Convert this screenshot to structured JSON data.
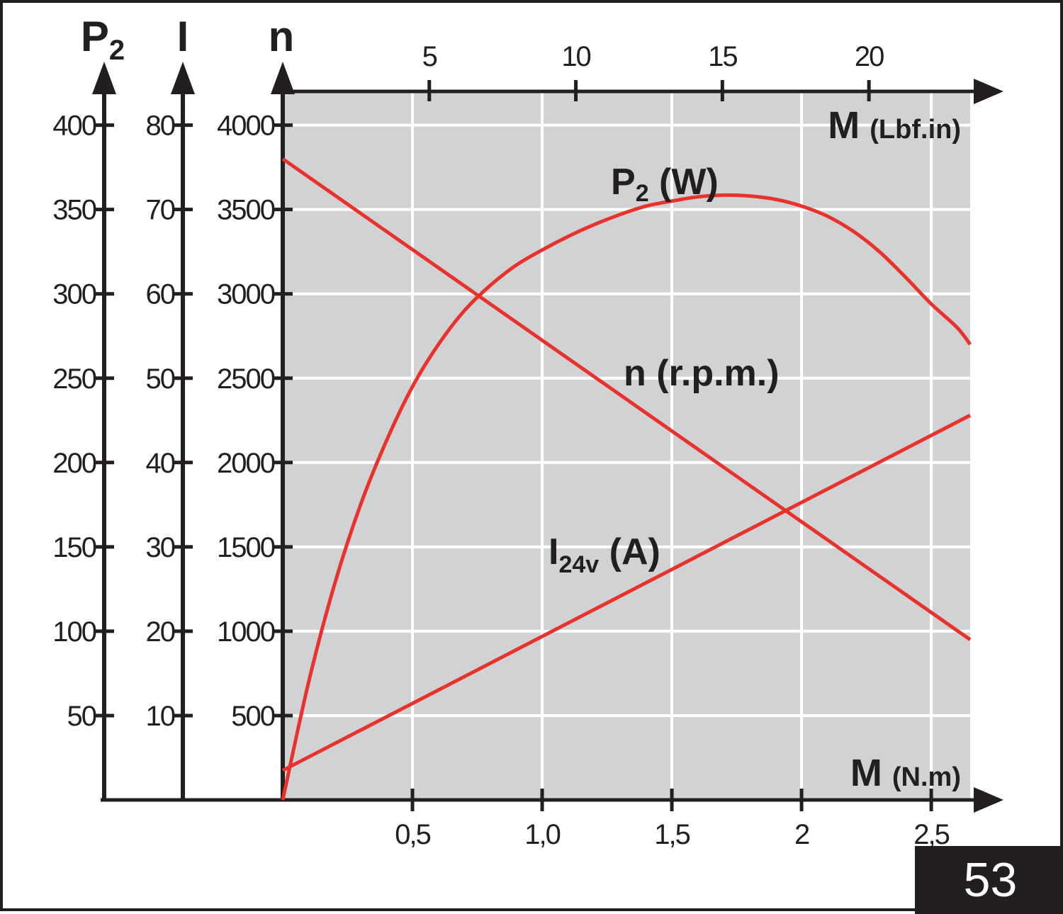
{
  "page_number": "53",
  "colors": {
    "plot_bg": "#d1d2d4",
    "grid": "#ffffff",
    "curve": "#e8322b",
    "ink": "#231f20"
  },
  "chart_data": {
    "type": "line",
    "x_bottom": {
      "label": "M",
      "unit": "(N.m)",
      "ticks": [
        0.5,
        1.0,
        1.5,
        2,
        2.5
      ],
      "tick_labels": [
        "0,5",
        "1,0",
        "1,5",
        "2",
        "2,5"
      ],
      "range": [
        0,
        2.65
      ]
    },
    "x_top": {
      "label": "M",
      "unit": "(Lbf.in)",
      "ticks": [
        5,
        10,
        15,
        20
      ],
      "tick_labels": [
        "5",
        "10",
        "15",
        "20"
      ]
    },
    "y_axes": [
      {
        "label": "P",
        "subscript": "2",
        "ticks": [
          50,
          100,
          150,
          200,
          250,
          300,
          350,
          400
        ],
        "range": [
          0,
          420
        ]
      },
      {
        "label": "I",
        "subscript": "",
        "ticks": [
          10,
          20,
          30,
          40,
          50,
          60,
          70,
          80
        ],
        "range": [
          0,
          84
        ]
      },
      {
        "label": "n",
        "subscript": "",
        "ticks": [
          500,
          1000,
          1500,
          2000,
          2500,
          3000,
          3500,
          4000
        ],
        "range": [
          0,
          4200
        ]
      }
    ],
    "grid": true,
    "series": [
      {
        "name": "n (r.p.m.)",
        "axis": "n",
        "x": [
          0,
          2.65
        ],
        "y": [
          3800,
          950
        ]
      },
      {
        "name": "I24v (A)",
        "axis": "I",
        "x": [
          0,
          2.65
        ],
        "y": [
          3.5,
          45.6
        ]
      },
      {
        "name": "P2 (W)",
        "axis": "P2",
        "x": [
          0,
          0.1,
          0.2,
          0.3,
          0.4,
          0.5,
          0.6,
          0.7,
          0.8,
          0.9,
          1.0,
          1.1,
          1.2,
          1.3,
          1.4,
          1.5,
          1.6,
          1.7,
          1.8,
          1.9,
          2.0,
          2.1,
          2.2,
          2.3,
          2.4,
          2.5,
          2.6,
          2.65
        ],
        "y": [
          0,
          70,
          128,
          175,
          213,
          245,
          270,
          290,
          305,
          317,
          326,
          334,
          341,
          347,
          352,
          355,
          357.5,
          358.5,
          358,
          356,
          352,
          346,
          337,
          325,
          310,
          294,
          280,
          270
        ]
      }
    ],
    "annotations": {
      "p2": {
        "main": "P",
        "sub": "2",
        "rest": " (W)"
      },
      "n": {
        "text": "n (r.p.m.)"
      },
      "i": {
        "main": "I",
        "sub": "24v",
        "rest": " (A)"
      }
    }
  }
}
